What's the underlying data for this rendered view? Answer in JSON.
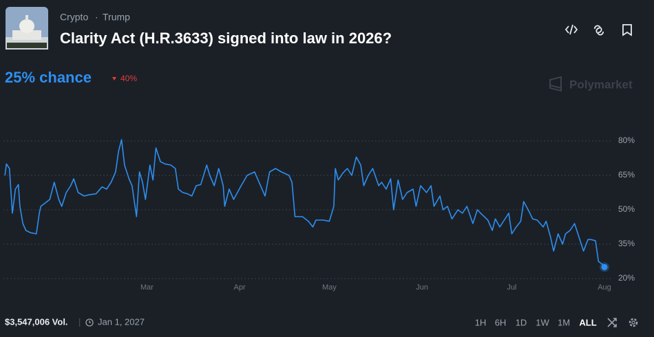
{
  "header": {
    "tags": [
      "Crypto",
      "Trump"
    ],
    "title": "Clarity Act (H.R.3633) signed into law in 2026?"
  },
  "chance": "25% chance",
  "change": "40%",
  "brand": "Polymarket",
  "chart_data": {
    "type": "line",
    "color": "#2e8ff0",
    "grid": true,
    "x": [
      12.5,
      13,
      14,
      15,
      16,
      17,
      17.5,
      18.5,
      19.5,
      21,
      23,
      24,
      24.5,
      26,
      27.5,
      29,
      30.5,
      31.5,
      33,
      34.5,
      35.5,
      37,
      39,
      40.5,
      43,
      45,
      46.5,
      48,
      49.5,
      50.5,
      51.5,
      52.5,
      54,
      55,
      56.5,
      57.5,
      58.5,
      59.5,
      61,
      62,
      63,
      64.5,
      66,
      68,
      69.5,
      70.5,
      72,
      73.5,
      75,
      76.5,
      78,
      80,
      81,
      82.5,
      84,
      85.5,
      86,
      87.5,
      89,
      91.5,
      93.5,
      96,
      98,
      99.5,
      101,
      103,
      105,
      107.5,
      108.5,
      109.5,
      112,
      114,
      115.5,
      116.5,
      119,
      121,
      122.5,
      123,
      124,
      125.5,
      127,
      128.5,
      130,
      131.5,
      132.5,
      134,
      135.5,
      137.5,
      138.5,
      140,
      141.5,
      142.5,
      144,
      145.5,
      147,
      149,
      150,
      151.5,
      153.5,
      155,
      156,
      158,
      159,
      160.5,
      162,
      164,
      165.5,
      167,
      169,
      170.5,
      172,
      174,
      175.5,
      176.5,
      178,
      179.5,
      181,
      182,
      183.5,
      185,
      186,
      187.5,
      189,
      190.5,
      192.5,
      193.5,
      195,
      196,
      197.5,
      199,
      200,
      201.5,
      203,
      204.5,
      206,
      207.5,
      208.5,
      210,
      211,
      212.5,
      213
    ],
    "values": [
      65,
      70,
      68,
      48.5,
      59,
      61,
      51.5,
      44,
      41,
      40,
      39.5,
      48.5,
      51.5,
      53,
      54.5,
      62,
      54.5,
      51.5,
      57.5,
      60.5,
      63.5,
      57.5,
      56,
      56.5,
      57,
      60,
      59,
      62,
      66.5,
      75.5,
      80.6,
      69.5,
      63.5,
      60.5,
      47,
      66.5,
      62,
      54.5,
      69.5,
      63,
      77,
      71,
      70,
      69.5,
      68,
      59,
      57.5,
      57,
      56,
      60.5,
      61,
      69.5,
      65,
      60.5,
      68,
      60.5,
      51.5,
      59,
      54.5,
      60.5,
      65,
      66.5,
      60.5,
      56,
      66.5,
      68,
      66.5,
      65,
      62,
      47,
      47,
      45,
      42.5,
      45.5,
      45.5,
      45,
      51.5,
      68,
      63,
      66,
      68,
      65,
      73,
      69.5,
      60.5,
      65,
      68,
      60.5,
      62,
      59,
      63.5,
      50,
      63,
      54.5,
      57.5,
      59,
      51.5,
      60.5,
      57.5,
      60.5,
      51.5,
      56,
      50,
      51.5,
      46,
      50,
      48.5,
      51.5,
      44,
      50,
      48,
      45.5,
      41,
      46,
      42.5,
      45.5,
      48.5,
      39.5,
      42.5,
      45,
      53.6,
      50,
      46,
      45.5,
      42.5,
      45,
      38,
      32,
      39.5,
      35,
      39.5,
      41,
      44,
      38,
      32,
      37,
      37,
      36.5,
      27.5,
      26,
      25
    ],
    "xlim": [
      12,
      213
    ],
    "ylim": [
      18.5,
      89
    ],
    "xticks": [
      {
        "value": 60,
        "label": "Mar"
      },
      {
        "value": 91,
        "label": "Apr"
      },
      {
        "value": 121,
        "label": "May"
      },
      {
        "value": 152,
        "label": "Jun"
      },
      {
        "value": 182,
        "label": "Jul"
      },
      {
        "value": 213,
        "label": "Aug"
      }
    ],
    "yticks": [
      {
        "value": 20,
        "label": "20%"
      },
      {
        "value": 35,
        "label": "35%"
      },
      {
        "value": 50,
        "label": "50%"
      },
      {
        "value": 65,
        "label": "65%"
      },
      {
        "value": 80,
        "label": "80%"
      }
    ]
  },
  "footer": {
    "volume": "$3,547,006 Vol.",
    "date": "Jan 1, 2027",
    "ranges": [
      "1H",
      "6H",
      "1D",
      "1W",
      "1M",
      "ALL"
    ]
  }
}
